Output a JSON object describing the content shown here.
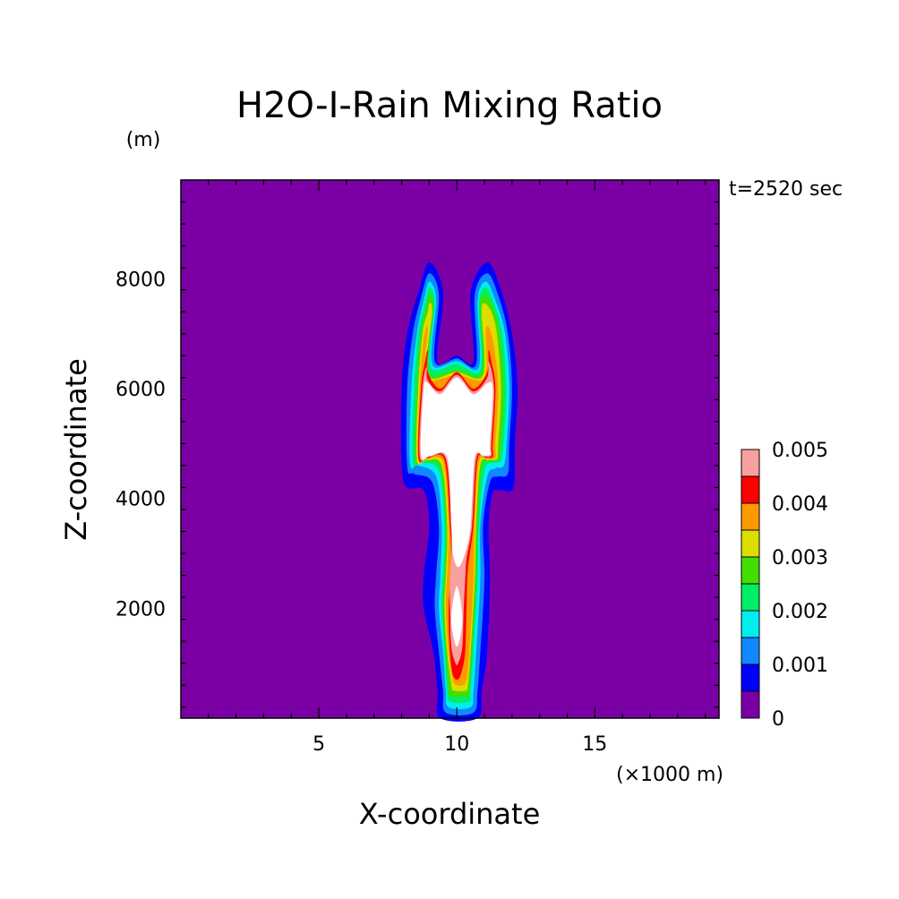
{
  "chart_data": {
    "type": "contour",
    "title": "H2O-I-Rain Mixing Ratio",
    "time_label": "t=2520 sec",
    "xlabel": "X-coordinate",
    "ylabel": "Z-coordinate",
    "x_unit_label": "(×1000 m)",
    "y_unit_label": "(m)",
    "xlim": [
      0,
      19.5
    ],
    "ylim": [
      0,
      9800
    ],
    "x_ticks": [
      5,
      10,
      15
    ],
    "y_ticks": [
      2000,
      4000,
      6000,
      8000
    ],
    "grid": false,
    "colorbar": {
      "placement": "right",
      "levels": [
        0,
        0.0005,
        0.001,
        0.0015,
        0.002,
        0.0025,
        0.003,
        0.0035,
        0.004,
        0.0045,
        0.005
      ],
      "labels": [
        "0",
        "0.001",
        "0.002",
        "0.003",
        "0.004",
        "0.005"
      ],
      "label_values": [
        0,
        0.001,
        0.002,
        0.003,
        0.004,
        0.005
      ],
      "colors": [
        "#7a00a6",
        "#0000ff",
        "#1188ff",
        "#00eeee",
        "#00ee66",
        "#44dd00",
        "#dddd00",
        "#ff9900",
        "#ff0000",
        "#f8a0a0"
      ],
      "above_max_color": "#ffffff"
    },
    "bands": [
      {
        "level": 0.0005,
        "color": "#0000ff",
        "shape": [
          [
            8.0,
            4600
          ],
          [
            8.0,
            6000
          ],
          [
            8.2,
            7000
          ],
          [
            8.6,
            7750
          ],
          [
            9.0,
            8300
          ],
          [
            9.5,
            7750
          ],
          [
            9.3,
            6500
          ],
          [
            10.0,
            6600
          ],
          [
            10.6,
            6500
          ],
          [
            10.5,
            7750
          ],
          [
            11.1,
            8300
          ],
          [
            11.6,
            7800
          ],
          [
            12.0,
            7000
          ],
          [
            12.2,
            6000
          ],
          [
            12.1,
            5000
          ],
          [
            12.05,
            4200
          ],
          [
            11.6,
            4150
          ],
          [
            11.3,
            4100
          ],
          [
            11.15,
            3500
          ],
          [
            11.2,
            2500
          ],
          [
            11.1,
            1200
          ],
          [
            10.9,
            500
          ],
          [
            10.75,
            0
          ],
          [
            9.4,
            0
          ],
          [
            9.3,
            500
          ],
          [
            9.15,
            1200
          ],
          [
            8.8,
            2000
          ],
          [
            8.8,
            2600
          ],
          [
            9.0,
            3500
          ],
          [
            8.8,
            4150
          ],
          [
            8.2,
            4200
          ]
        ]
      },
      {
        "level": 0.001,
        "color": "#1188ff",
        "shape": [
          [
            8.2,
            4600
          ],
          [
            8.2,
            6000
          ],
          [
            8.4,
            7000
          ],
          [
            8.7,
            7650
          ],
          [
            9.0,
            8100
          ],
          [
            9.35,
            7700
          ],
          [
            9.2,
            6500
          ],
          [
            10.0,
            6550
          ],
          [
            10.7,
            6450
          ],
          [
            10.65,
            7700
          ],
          [
            11.1,
            8100
          ],
          [
            11.5,
            7700
          ],
          [
            11.85,
            7000
          ],
          [
            12.0,
            6000
          ],
          [
            11.9,
            5000
          ],
          [
            11.85,
            4450
          ],
          [
            11.5,
            4400
          ],
          [
            11.2,
            4300
          ],
          [
            10.95,
            3500
          ],
          [
            11.0,
            2500
          ],
          [
            10.85,
            1200
          ],
          [
            10.75,
            500
          ],
          [
            10.6,
            100
          ],
          [
            9.6,
            100
          ],
          [
            9.5,
            500
          ],
          [
            9.35,
            1200
          ],
          [
            9.2,
            2000
          ],
          [
            9.25,
            2600
          ],
          [
            9.35,
            3500
          ],
          [
            9.1,
            4300
          ],
          [
            8.45,
            4450
          ]
        ]
      },
      {
        "level": 0.0015,
        "color": "#00eeee",
        "shape": [
          [
            8.3,
            4650
          ],
          [
            8.35,
            6000
          ],
          [
            8.55,
            7000
          ],
          [
            8.8,
            7600
          ],
          [
            9.0,
            7950
          ],
          [
            9.25,
            7600
          ],
          [
            9.1,
            6450
          ],
          [
            10.0,
            6500
          ],
          [
            10.8,
            6400
          ],
          [
            10.75,
            7600
          ],
          [
            11.05,
            7950
          ],
          [
            11.4,
            7600
          ],
          [
            11.75,
            7000
          ],
          [
            11.9,
            6000
          ],
          [
            11.8,
            5000
          ],
          [
            11.7,
            4600
          ],
          [
            11.4,
            4550
          ],
          [
            11.1,
            4400
          ],
          [
            10.85,
            3500
          ],
          [
            10.85,
            2500
          ],
          [
            10.7,
            1200
          ],
          [
            10.6,
            500
          ],
          [
            10.5,
            200
          ],
          [
            9.7,
            200
          ],
          [
            9.6,
            500
          ],
          [
            9.5,
            1200
          ],
          [
            9.35,
            2000
          ],
          [
            9.4,
            2600
          ],
          [
            9.45,
            3500
          ],
          [
            9.25,
            4400
          ],
          [
            8.6,
            4600
          ]
        ]
      },
      {
        "level": 0.002,
        "color": "#00ee66",
        "shape": [
          [
            8.4,
            4680
          ],
          [
            8.45,
            6000
          ],
          [
            8.6,
            7000
          ],
          [
            8.85,
            7550
          ],
          [
            9.0,
            7850
          ],
          [
            9.2,
            7550
          ],
          [
            9.05,
            6400
          ],
          [
            10.0,
            6450
          ],
          [
            10.85,
            6350
          ],
          [
            10.8,
            7550
          ],
          [
            11.05,
            7850
          ],
          [
            11.35,
            7550
          ],
          [
            11.65,
            7000
          ],
          [
            11.8,
            6000
          ],
          [
            11.7,
            5000
          ],
          [
            11.6,
            4680
          ],
          [
            11.3,
            4650
          ],
          [
            11.0,
            4500
          ],
          [
            10.8,
            3500
          ],
          [
            10.75,
            2500
          ],
          [
            10.6,
            1200
          ],
          [
            10.5,
            500
          ],
          [
            10.45,
            300
          ],
          [
            9.75,
            300
          ],
          [
            9.65,
            500
          ],
          [
            9.55,
            1200
          ],
          [
            9.45,
            2000
          ],
          [
            9.5,
            2600
          ],
          [
            9.55,
            3500
          ],
          [
            9.35,
            4500
          ],
          [
            8.7,
            4650
          ]
        ]
      },
      {
        "level": 0.0025,
        "color": "#44dd00",
        "shape": [
          [
            8.5,
            4700
          ],
          [
            8.55,
            6000
          ],
          [
            8.7,
            7000
          ],
          [
            8.9,
            7500
          ],
          [
            9.0,
            7700
          ],
          [
            9.15,
            7500
          ],
          [
            9.0,
            6300
          ],
          [
            10.0,
            6350
          ],
          [
            10.9,
            6300
          ],
          [
            10.85,
            7500
          ],
          [
            11.0,
            7700
          ],
          [
            11.3,
            7500
          ],
          [
            11.55,
            7000
          ],
          [
            11.7,
            6000
          ],
          [
            11.6,
            5000
          ],
          [
            11.5,
            4700
          ],
          [
            11.2,
            4680
          ],
          [
            10.9,
            4550
          ],
          [
            10.75,
            3500
          ],
          [
            10.7,
            2500
          ],
          [
            10.55,
            1200
          ],
          [
            10.45,
            500
          ],
          [
            10.4,
            400
          ],
          [
            9.8,
            400
          ],
          [
            9.7,
            500
          ],
          [
            9.6,
            1200
          ],
          [
            9.5,
            2000
          ],
          [
            9.55,
            2600
          ],
          [
            9.6,
            3500
          ],
          [
            9.4,
            4550
          ],
          [
            8.8,
            4680
          ]
        ]
      },
      {
        "level": 0.003,
        "color": "#dddd00",
        "shape": [
          [
            8.55,
            4720
          ],
          [
            8.6,
            6000
          ],
          [
            8.75,
            7000
          ],
          [
            8.95,
            7400
          ],
          [
            9.0,
            7550
          ],
          [
            9.1,
            7400
          ],
          [
            8.95,
            6250
          ],
          [
            10.0,
            6300
          ],
          [
            10.95,
            6250
          ],
          [
            10.9,
            7400
          ],
          [
            11.0,
            7550
          ],
          [
            11.25,
            7400
          ],
          [
            11.45,
            7000
          ],
          [
            11.6,
            6000
          ],
          [
            11.5,
            5000
          ],
          [
            11.45,
            4720
          ],
          [
            11.15,
            4700
          ],
          [
            10.85,
            4600
          ],
          [
            10.7,
            3500
          ],
          [
            10.65,
            2500
          ],
          [
            10.5,
            1200
          ],
          [
            10.4,
            600
          ],
          [
            10.3,
            500
          ],
          [
            9.9,
            500
          ],
          [
            9.8,
            600
          ],
          [
            9.65,
            1200
          ],
          [
            9.55,
            2000
          ],
          [
            9.6,
            2600
          ],
          [
            9.65,
            3500
          ],
          [
            9.45,
            4600
          ],
          [
            8.9,
            4700
          ]
        ]
      },
      {
        "level": 0.0035,
        "color": "#ff9900",
        "shape": [
          [
            8.6,
            4740
          ],
          [
            8.65,
            6000
          ],
          [
            8.8,
            6900
          ],
          [
            8.95,
            7100
          ],
          [
            8.9,
            6200
          ],
          [
            10.0,
            6250
          ],
          [
            11.0,
            6200
          ],
          [
            11.05,
            7100
          ],
          [
            11.3,
            6900
          ],
          [
            11.5,
            6000
          ],
          [
            11.4,
            5000
          ],
          [
            11.4,
            4740
          ],
          [
            11.1,
            4720
          ],
          [
            10.8,
            4650
          ],
          [
            10.65,
            3500
          ],
          [
            10.6,
            2500
          ],
          [
            10.45,
            1200
          ],
          [
            10.35,
            700
          ],
          [
            10.2,
            600
          ],
          [
            10.0,
            600
          ],
          [
            9.85,
            700
          ],
          [
            9.7,
            1200
          ],
          [
            9.6,
            2000
          ],
          [
            9.65,
            2600
          ],
          [
            9.7,
            3500
          ],
          [
            9.5,
            4650
          ],
          [
            8.9,
            4720
          ]
        ]
      },
      {
        "level": 0.004,
        "color": "#ff0000",
        "shape": [
          [
            8.6,
            4760
          ],
          [
            8.7,
            6000
          ],
          [
            8.85,
            6500
          ],
          [
            8.95,
            6700
          ],
          [
            8.95,
            6300
          ],
          [
            9.4,
            6000
          ],
          [
            10.0,
            6300
          ],
          [
            10.6,
            6000
          ],
          [
            11.1,
            6300
          ],
          [
            11.15,
            6700
          ],
          [
            11.25,
            6500
          ],
          [
            11.4,
            6000
          ],
          [
            11.3,
            5000
          ],
          [
            11.3,
            4760
          ],
          [
            11.05,
            4740
          ],
          [
            10.75,
            4700
          ],
          [
            10.6,
            3500
          ],
          [
            10.4,
            2700
          ],
          [
            10.35,
            2000
          ],
          [
            10.3,
            1200
          ],
          [
            10.15,
            800
          ],
          [
            10.0,
            700
          ],
          [
            9.85,
            800
          ],
          [
            9.75,
            1200
          ],
          [
            9.7,
            2000
          ],
          [
            9.8,
            2700
          ],
          [
            9.75,
            3500
          ],
          [
            9.55,
            4700
          ],
          [
            8.95,
            4740
          ]
        ]
      },
      {
        "level": 0.0045,
        "color": "#f8a0a0",
        "shape": [
          [
            8.65,
            4780
          ],
          [
            8.75,
            6000
          ],
          [
            8.9,
            6400
          ],
          [
            8.95,
            6150
          ],
          [
            9.4,
            5950
          ],
          [
            10.0,
            6250
          ],
          [
            10.6,
            5950
          ],
          [
            11.1,
            6200
          ],
          [
            11.15,
            6500
          ],
          [
            11.35,
            6000
          ],
          [
            11.25,
            5000
          ],
          [
            11.25,
            4780
          ],
          [
            11.0,
            4760
          ],
          [
            10.7,
            4720
          ],
          [
            10.55,
            3500
          ],
          [
            10.35,
            2900
          ],
          [
            10.3,
            2500
          ],
          [
            10.25,
            2000
          ],
          [
            10.2,
            1300
          ],
          [
            10.05,
            1000
          ],
          [
            9.95,
            1000
          ],
          [
            9.8,
            1300
          ],
          [
            9.75,
            2000
          ],
          [
            9.75,
            2500
          ],
          [
            9.8,
            2900
          ],
          [
            9.8,
            3500
          ],
          [
            9.6,
            4720
          ],
          [
            9.0,
            4760
          ]
        ]
      },
      {
        "level": 0.005,
        "color": "#ffffff",
        "shape": [
          [
            8.7,
            4800
          ],
          [
            8.8,
            6000
          ],
          [
            8.95,
            6100
          ],
          [
            9.4,
            5900
          ],
          [
            10.0,
            6200
          ],
          [
            10.6,
            5900
          ],
          [
            11.1,
            6100
          ],
          [
            11.3,
            6000
          ],
          [
            11.2,
            5000
          ],
          [
            11.2,
            4800
          ],
          [
            10.95,
            4780
          ],
          [
            10.65,
            4740
          ],
          [
            10.5,
            3500
          ],
          [
            10.3,
            3000
          ],
          [
            10.05,
            2750
          ],
          [
            9.85,
            3000
          ],
          [
            9.8,
            3500
          ],
          [
            9.65,
            4740
          ],
          [
            9.05,
            4780
          ]
        ]
      },
      {
        "level": 0.005,
        "color": "#ffffff",
        "shape": [
          [
            10.0,
            1300
          ],
          [
            10.2,
            1800
          ],
          [
            10.0,
            2400
          ],
          [
            9.8,
            1800
          ]
        ]
      }
    ]
  }
}
